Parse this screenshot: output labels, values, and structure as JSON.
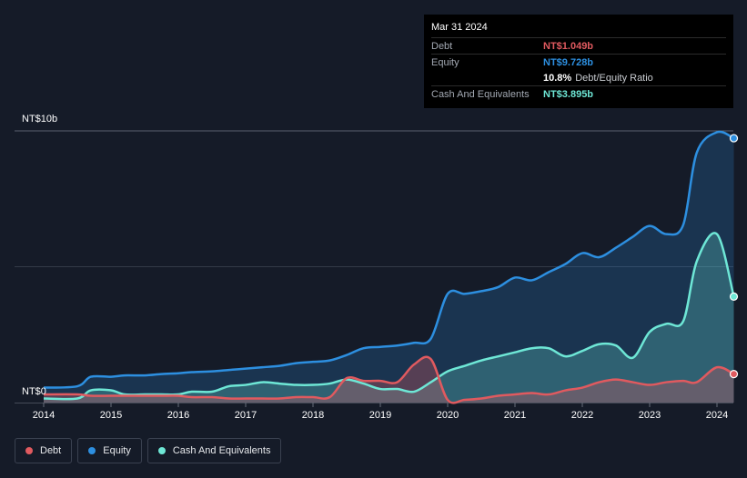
{
  "tooltip": {
    "date": "Mar 31 2024",
    "debt_label": "Debt",
    "debt_value": "NT$1.049b",
    "equity_label": "Equity",
    "equity_value": "NT$9.728b",
    "ratio_value": "10.8%",
    "ratio_label": "Debt/Equity Ratio",
    "cash_label": "Cash And Equivalents",
    "cash_value": "NT$3.895b"
  },
  "legend": {
    "debt": "Debt",
    "equity": "Equity",
    "cash": "Cash And Equivalents"
  },
  "colors": {
    "debt": "#e05a5f",
    "equity": "#2d8fe0",
    "cash": "#6ee7d6",
    "background": "#151b28"
  },
  "chart_data": {
    "type": "area",
    "ylabel_top": "NT$10b",
    "ylabel_bottom": "NT$0",
    "ylim": [
      0,
      10
    ],
    "xlim": [
      2013.9,
      2024.25
    ],
    "x_ticks": [
      "2014",
      "2015",
      "2016",
      "2017",
      "2018",
      "2019",
      "2020",
      "2021",
      "2022",
      "2023",
      "2024"
    ],
    "grid": true,
    "legend_position": "bottom-left",
    "series": [
      {
        "name": "Equity",
        "unit": "NT$b",
        "x": [
          2014.0,
          2014.5,
          2014.7,
          2015.0,
          2015.2,
          2015.5,
          2015.75,
          2016.0,
          2016.2,
          2016.5,
          2016.75,
          2017.0,
          2017.25,
          2017.5,
          2017.75,
          2018.0,
          2018.25,
          2018.5,
          2018.75,
          2019.0,
          2019.25,
          2019.5,
          2019.75,
          2020.0,
          2020.25,
          2020.5,
          2020.75,
          2021.0,
          2021.25,
          2021.5,
          2021.75,
          2022.0,
          2022.25,
          2022.5,
          2022.75,
          2023.0,
          2023.25,
          2023.5,
          2023.7,
          2024.0,
          2024.25
        ],
        "values": [
          0.55,
          0.6,
          0.95,
          0.95,
          1.0,
          1.0,
          1.05,
          1.08,
          1.12,
          1.15,
          1.2,
          1.25,
          1.3,
          1.35,
          1.45,
          1.5,
          1.55,
          1.75,
          2.0,
          2.05,
          2.1,
          2.2,
          2.35,
          4.0,
          4.0,
          4.1,
          4.25,
          4.6,
          4.5,
          4.8,
          5.1,
          5.5,
          5.35,
          5.7,
          6.1,
          6.5,
          6.2,
          6.55,
          9.2,
          9.95,
          9.73
        ]
      },
      {
        "name": "Cash And Equivalents",
        "unit": "NT$b",
        "x": [
          2014.0,
          2014.5,
          2014.7,
          2015.0,
          2015.2,
          2015.5,
          2015.75,
          2016.0,
          2016.2,
          2016.5,
          2016.75,
          2017.0,
          2017.25,
          2017.5,
          2017.75,
          2018.0,
          2018.25,
          2018.5,
          2018.75,
          2019.0,
          2019.25,
          2019.5,
          2019.75,
          2020.0,
          2020.25,
          2020.5,
          2020.75,
          2021.0,
          2021.25,
          2021.5,
          2021.75,
          2022.0,
          2022.25,
          2022.5,
          2022.75,
          2023.0,
          2023.25,
          2023.5,
          2023.7,
          2024.0,
          2024.25
        ],
        "values": [
          0.15,
          0.15,
          0.45,
          0.45,
          0.3,
          0.3,
          0.3,
          0.3,
          0.4,
          0.4,
          0.6,
          0.65,
          0.75,
          0.7,
          0.65,
          0.65,
          0.7,
          0.85,
          0.7,
          0.5,
          0.5,
          0.4,
          0.75,
          1.15,
          1.35,
          1.55,
          1.7,
          1.85,
          2.0,
          2.0,
          1.7,
          1.9,
          2.15,
          2.1,
          1.65,
          2.6,
          2.9,
          3.0,
          5.2,
          6.2,
          3.9
        ]
      },
      {
        "name": "Debt",
        "unit": "NT$b",
        "x": [
          2014.0,
          2014.5,
          2014.7,
          2015.0,
          2015.2,
          2015.5,
          2015.75,
          2016.0,
          2016.2,
          2016.5,
          2016.75,
          2017.0,
          2017.25,
          2017.5,
          2017.75,
          2018.0,
          2018.25,
          2018.5,
          2018.75,
          2019.0,
          2019.25,
          2019.5,
          2019.75,
          2020.0,
          2020.25,
          2020.5,
          2020.75,
          2021.0,
          2021.25,
          2021.5,
          2021.75,
          2022.0,
          2022.25,
          2022.5,
          2022.75,
          2023.0,
          2023.25,
          2023.5,
          2023.7,
          2024.0,
          2024.25
        ],
        "values": [
          0.3,
          0.3,
          0.25,
          0.25,
          0.25,
          0.25,
          0.25,
          0.25,
          0.2,
          0.2,
          0.15,
          0.15,
          0.15,
          0.15,
          0.2,
          0.2,
          0.2,
          0.9,
          0.8,
          0.8,
          0.75,
          1.4,
          1.6,
          0.1,
          0.1,
          0.15,
          0.25,
          0.3,
          0.35,
          0.3,
          0.45,
          0.55,
          0.75,
          0.85,
          0.75,
          0.65,
          0.75,
          0.8,
          0.75,
          1.3,
          1.05
        ]
      }
    ]
  }
}
